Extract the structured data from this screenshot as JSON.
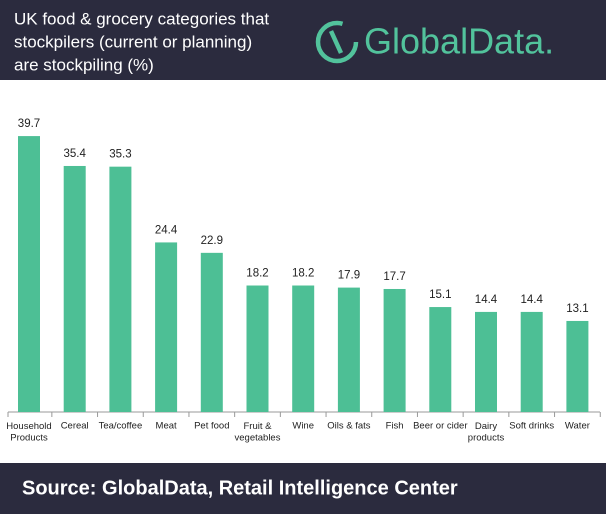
{
  "chart_data": {
    "type": "bar",
    "title_lines": [
      "UK food & grocery categories that",
      "stockpilers (current or planning)",
      "are stockpiling (%)"
    ],
    "brand": "GlobalData.",
    "source": "Source:  GlobalData, Retail Intelligence Center",
    "categories": [
      "Household\nProducts",
      "Cereal",
      "Tea/coffee",
      "Meat",
      "Pet food",
      "Fruit &\nvegetables",
      "Wine",
      "Oils & fats",
      "Fish",
      "Beer or cider",
      "Dairy\nproducts",
      "Soft drinks",
      "Water"
    ],
    "values": [
      39.7,
      35.4,
      35.3,
      24.4,
      22.9,
      18.2,
      18.2,
      17.9,
      17.7,
      15.1,
      14.4,
      14.4,
      13.1
    ],
    "color": "#4dbf95"
  }
}
